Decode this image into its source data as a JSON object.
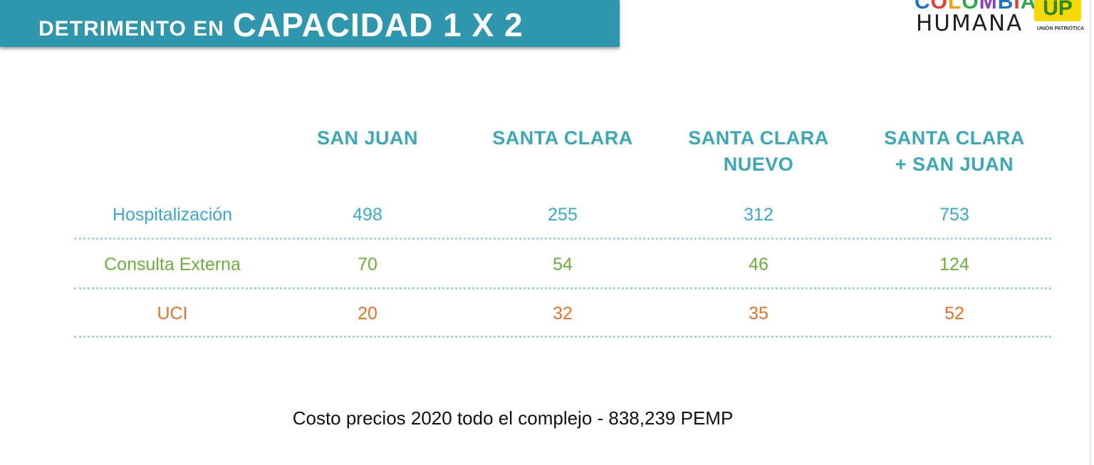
{
  "title": {
    "prefix": "DETRIMENTO EN",
    "main": "CAPACIDAD 1 X 2"
  },
  "logo": {
    "line1_letters": [
      {
        "char": "C",
        "color": "#1e73c8"
      },
      {
        "char": "O",
        "color": "#e53a2f"
      },
      {
        "char": "L",
        "color": "#f2a20c"
      },
      {
        "char": "O",
        "color": "#2aa84a"
      },
      {
        "char": "M",
        "color": "#8a3fc2"
      },
      {
        "char": "B",
        "color": "#1e73c8"
      },
      {
        "char": "I",
        "color": "#e53a2f"
      },
      {
        "char": "A",
        "color": "#2aa84a"
      }
    ],
    "line2": "HUMANA",
    "up": "UP",
    "union": "UNIÓN PATRIÓTICA"
  },
  "table": {
    "columns": [
      [
        "SAN JUAN"
      ],
      [
        "SANTA CLARA"
      ],
      [
        "SANTA CLARA",
        "NUEVO"
      ],
      [
        "SANTA CLARA",
        "+ SAN JUAN"
      ]
    ],
    "rows": [
      {
        "label": "Hospitalización",
        "values": [
          "498",
          "255",
          "312",
          "753"
        ]
      },
      {
        "label": "Consulta Externa",
        "values": [
          "70",
          "54",
          "46",
          "124"
        ]
      },
      {
        "label": "UCI",
        "values": [
          "20",
          "32",
          "35",
          "52"
        ]
      }
    ]
  },
  "colors": {
    "banner": "#2e96ad",
    "header_text": "#3aa8b5",
    "hospitalizacion": "#3aa9cf",
    "consulta_externa": "#6eae3c",
    "uci": "#e6722a"
  },
  "footer": "Costo precios 2020 todo el complejo - 838,239 PEMP"
}
